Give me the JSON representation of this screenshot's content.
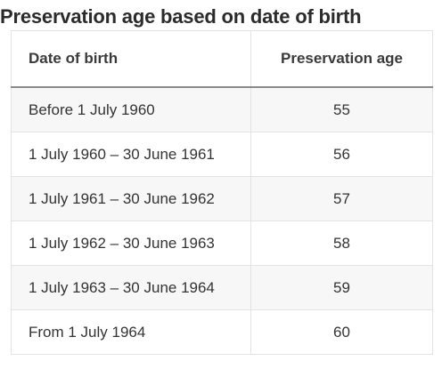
{
  "title": "Preservation age based on date of birth",
  "table": {
    "headers": [
      "Date of birth",
      "Preservation age"
    ],
    "rows": [
      [
        "Before 1 July 1960",
        "55"
      ],
      [
        "1 July 1960 – 30 June 1961",
        "56"
      ],
      [
        "1 July 1961 – 30 June 1962",
        "57"
      ],
      [
        "1 July 1962 – 30 June 1963",
        "58"
      ],
      [
        "1 July 1963 – 30 June 1964",
        "59"
      ],
      [
        "From 1 July 1964",
        "60"
      ]
    ]
  }
}
